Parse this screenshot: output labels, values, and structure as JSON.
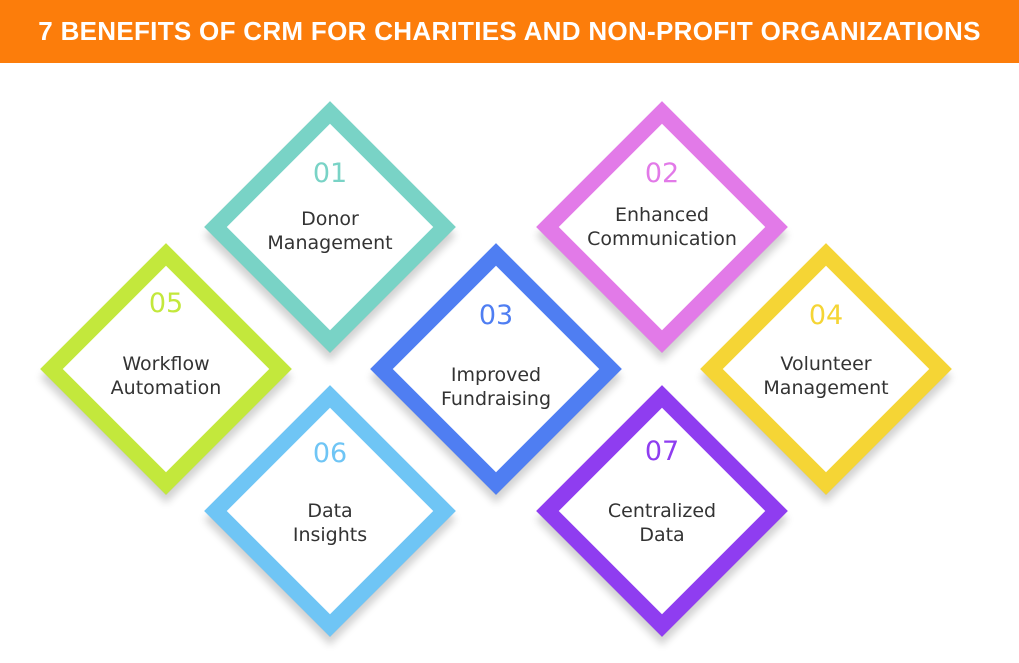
{
  "title": "7 BENEFITS OF CRM FOR CHARITIES AND NON-PROFIT ORGANIZATIONS",
  "benefits": [
    {
      "number": "01",
      "line1": "Donor",
      "line2": "Management",
      "color": "#79d3c6"
    },
    {
      "number": "02",
      "line1": "Enhanced",
      "line2": "Communication",
      "color": "#e27ae8"
    },
    {
      "number": "03",
      "line1": "Improved",
      "line2": "Fundraising",
      "color": "#4f7ef2"
    },
    {
      "number": "04",
      "line1": "Volunteer",
      "line2": "Management",
      "color": "#f5d535"
    },
    {
      "number": "05",
      "line1": "Workflow",
      "line2": "Automation",
      "color": "#c3e83c"
    },
    {
      "number": "06",
      "line1": "Data",
      "line2": "Insights",
      "color": "#6fc5f5"
    },
    {
      "number": "07",
      "line1": "Centralized",
      "line2": "Data",
      "color": "#8f3df0"
    }
  ]
}
